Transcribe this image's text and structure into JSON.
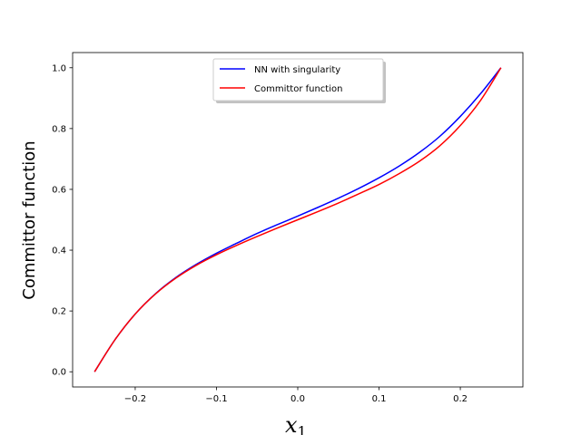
{
  "chart_data": {
    "type": "line",
    "xlabel_main": "x",
    "xlabel_sub": "1",
    "ylabel": "Committor function",
    "xlim": [
      -0.277,
      0.277
    ],
    "ylim": [
      -0.05,
      1.05
    ],
    "xticks": [
      -0.2,
      -0.1,
      0.0,
      0.1,
      0.2
    ],
    "xtick_labels": [
      "−0.2",
      "−0.1",
      "0.0",
      "0.1",
      "0.2"
    ],
    "yticks": [
      0.0,
      0.2,
      0.4,
      0.6,
      0.8,
      1.0
    ],
    "ytick_labels": [
      "0.0",
      "0.2",
      "0.4",
      "0.6",
      "0.8",
      "1.0"
    ],
    "grid": false,
    "legend": "upper-center",
    "series": [
      {
        "name": "NN with singularity",
        "color": "#0000ff",
        "x": [
          -0.25,
          -0.225,
          -0.2,
          -0.175,
          -0.15,
          -0.125,
          -0.1,
          -0.075,
          -0.05,
          -0.025,
          0.0,
          0.025,
          0.05,
          0.075,
          0.1,
          0.125,
          0.15,
          0.175,
          0.2,
          0.225,
          0.25
        ],
        "y": [
          0.0,
          0.105,
          0.19,
          0.257,
          0.31,
          0.353,
          0.39,
          0.423,
          0.455,
          0.484,
          0.512,
          0.541,
          0.571,
          0.603,
          0.638,
          0.677,
          0.722,
          0.775,
          0.84,
          0.915,
          1.0
        ]
      },
      {
        "name": "Committor function",
        "color": "#ff0000",
        "x": [
          -0.25,
          -0.225,
          -0.2,
          -0.175,
          -0.15,
          -0.125,
          -0.1,
          -0.075,
          -0.05,
          -0.025,
          0.0,
          0.025,
          0.05,
          0.075,
          0.1,
          0.125,
          0.15,
          0.175,
          0.2,
          0.225,
          0.25
        ],
        "y": [
          0.0,
          0.105,
          0.19,
          0.256,
          0.308,
          0.35,
          0.385,
          0.416,
          0.445,
          0.473,
          0.5,
          0.527,
          0.555,
          0.585,
          0.616,
          0.652,
          0.693,
          0.744,
          0.81,
          0.893,
          1.0
        ]
      }
    ]
  }
}
